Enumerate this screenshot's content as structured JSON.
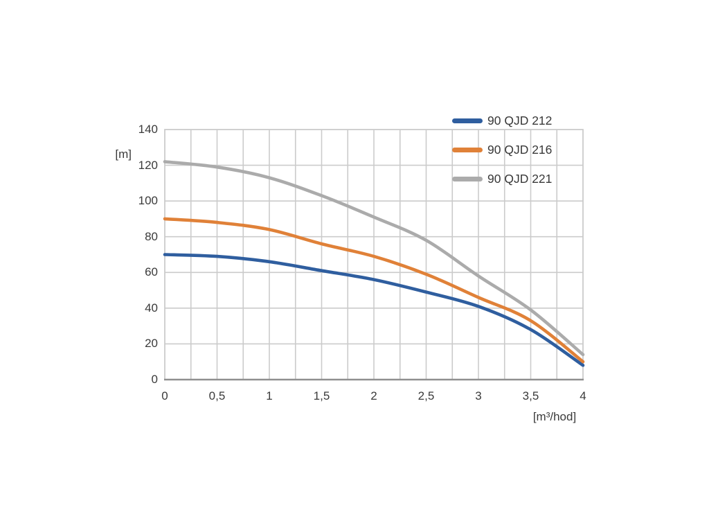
{
  "chart_data": {
    "type": "line",
    "x": [
      0,
      0.5,
      1,
      1.5,
      2,
      2.5,
      3,
      3.5,
      4
    ],
    "series": [
      {
        "name": "90 QJD 212",
        "color": "#2F5E9F",
        "values": [
          70,
          69,
          66,
          61,
          56,
          49,
          41,
          28,
          8
        ]
      },
      {
        "name": "90 QJD 216",
        "color": "#E08138",
        "values": [
          90,
          88,
          84,
          76,
          69,
          59,
          46,
          33,
          10
        ]
      },
      {
        "name": "90 QJD 221",
        "color": "#ABABAB",
        "values": [
          122,
          119,
          113,
          103,
          91,
          78,
          58,
          39,
          14
        ]
      }
    ],
    "title": "",
    "xlabel": "[m³/hod]",
    "ylabel": "[m]",
    "xlim": [
      0,
      4
    ],
    "ylim": [
      0,
      140
    ],
    "x_ticks": [
      "0",
      "0,5",
      "1",
      "1,5",
      "2",
      "2,5",
      "3",
      "3,5",
      "4"
    ],
    "y_ticks": [
      "140",
      "120",
      "100",
      "80",
      "60",
      "40",
      "20",
      "0"
    ],
    "grid": {
      "on": true,
      "x_minor_step": 0.25,
      "y_step": 20,
      "color": "#CBCBCB",
      "axis_color": "#8F8F8F"
    },
    "legend_position": "top-right"
  },
  "legend": {
    "items": [
      {
        "label": "90 QJD 212",
        "color": "#2F5E9F"
      },
      {
        "label": "90 QJD 216",
        "color": "#E08138"
      },
      {
        "label": "90 QJD 221",
        "color": "#ABABAB"
      }
    ]
  }
}
